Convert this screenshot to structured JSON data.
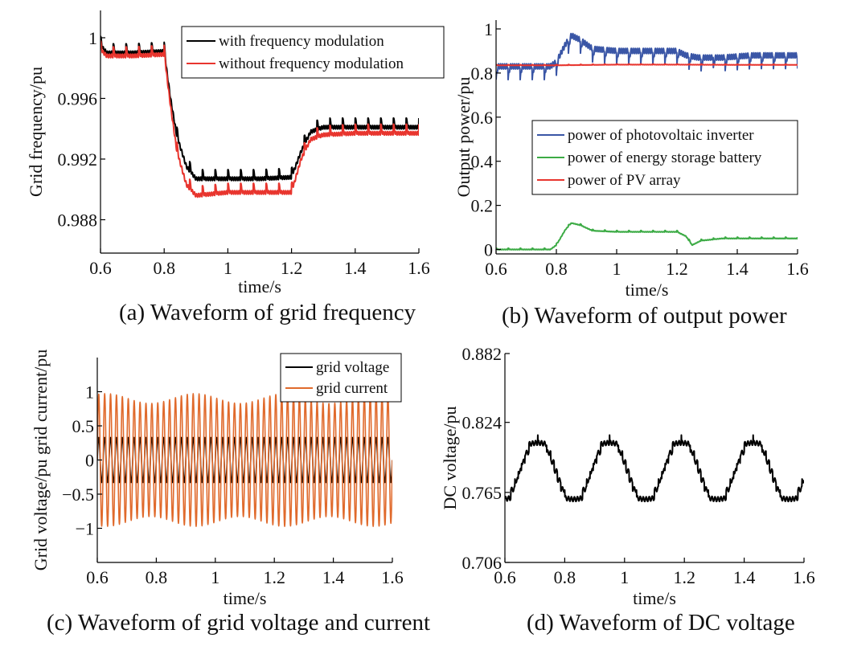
{
  "chart_data": [
    {
      "id": "a",
      "type": "line",
      "caption": "(a) Waveform of grid frequency",
      "xlabel": "time/s",
      "ylabel": "Grid frequency/pu",
      "xlim": [
        0.6,
        1.6
      ],
      "ylim": [
        0.9858,
        1.0018
      ],
      "xticks": [
        0.6,
        0.8,
        1,
        1.2,
        1.4,
        1.6
      ],
      "xtick_labels": [
        "0.6",
        "0.8",
        "1",
        "1.2",
        "1.4",
        "1.6"
      ],
      "yticks": [
        0.988,
        0.992,
        0.996,
        1.0
      ],
      "ytick_labels": [
        "0.988",
        "0.992",
        "0.996",
        "1"
      ],
      "legend_position": "top-right",
      "series": [
        {
          "name": "with frequency modulation",
          "color": "#000000",
          "points": [
            [
              0.6,
              0.9995
            ],
            [
              0.62,
              0.999
            ],
            [
              0.7,
              0.999
            ],
            [
              0.8,
              0.9991
            ],
            [
              0.82,
              0.996
            ],
            [
              0.84,
              0.9935
            ],
            [
              0.87,
              0.9915
            ],
            [
              0.9,
              0.9907
            ],
            [
              1.0,
              0.9907
            ],
            [
              1.1,
              0.9907
            ],
            [
              1.2,
              0.9908
            ],
            [
              1.23,
              0.9925
            ],
            [
              1.26,
              0.9938
            ],
            [
              1.3,
              0.9941
            ],
            [
              1.4,
              0.9941
            ],
            [
              1.5,
              0.9941
            ],
            [
              1.6,
              0.9941
            ]
          ],
          "ripple": 0.0006
        },
        {
          "name": "without frequency modulation",
          "color": "#e8352e",
          "points": [
            [
              0.6,
              0.9992
            ],
            [
              0.62,
              0.9988
            ],
            [
              0.7,
              0.9988
            ],
            [
              0.8,
              0.9989
            ],
            [
              0.82,
              0.9955
            ],
            [
              0.84,
              0.9925
            ],
            [
              0.87,
              0.9903
            ],
            [
              0.9,
              0.9896
            ],
            [
              1.0,
              0.9898
            ],
            [
              1.1,
              0.9898
            ],
            [
              1.2,
              0.9898
            ],
            [
              1.23,
              0.992
            ],
            [
              1.26,
              0.9933
            ],
            [
              1.3,
              0.9936
            ],
            [
              1.4,
              0.9937
            ],
            [
              1.5,
              0.9937
            ],
            [
              1.6,
              0.9937
            ]
          ],
          "ripple": 0.0006
        }
      ]
    },
    {
      "id": "b",
      "type": "line",
      "caption": "(b) Waveform of output power",
      "xlabel": "time/s",
      "ylabel": "Output power/pu",
      "xlim": [
        0.6,
        1.6
      ],
      "ylim": [
        -0.02,
        1.04
      ],
      "xticks": [
        0.6,
        0.8,
        1,
        1.2,
        1.4,
        1.6
      ],
      "xtick_labels": [
        "0.6",
        "0.8",
        "1",
        "1.2",
        "1.4",
        "1.6"
      ],
      "yticks": [
        0,
        0.2,
        0.4,
        0.6,
        0.8,
        1
      ],
      "ytick_labels": [
        "0",
        "0.2",
        "0.4",
        "0.6",
        "0.8",
        "1"
      ],
      "legend_position": "center-right",
      "series": [
        {
          "name": "power of photovoltaic inverter",
          "color": "#3a56a6",
          "points": [
            [
              0.6,
              0.83
            ],
            [
              0.78,
              0.83
            ],
            [
              0.8,
              0.85
            ],
            [
              0.83,
              0.93
            ],
            [
              0.85,
              0.97
            ],
            [
              0.88,
              0.95
            ],
            [
              0.92,
              0.91
            ],
            [
              1.0,
              0.9
            ],
            [
              1.1,
              0.9
            ],
            [
              1.2,
              0.9
            ],
            [
              1.23,
              0.88
            ],
            [
              1.27,
              0.87
            ],
            [
              1.35,
              0.87
            ],
            [
              1.45,
              0.88
            ],
            [
              1.6,
              0.88
            ]
          ],
          "ripple": 0.06
        },
        {
          "name": "power of energy storage battery",
          "color": "#3cab45",
          "points": [
            [
              0.6,
              0.0
            ],
            [
              0.78,
              0.0
            ],
            [
              0.8,
              0.02
            ],
            [
              0.83,
              0.09
            ],
            [
              0.85,
              0.12
            ],
            [
              0.88,
              0.11
            ],
            [
              0.92,
              0.085
            ],
            [
              1.0,
              0.08
            ],
            [
              1.2,
              0.08
            ],
            [
              1.23,
              0.06
            ],
            [
              1.25,
              0.02
            ],
            [
              1.28,
              0.04
            ],
            [
              1.35,
              0.05
            ],
            [
              1.6,
              0.05
            ]
          ],
          "ripple": 0.006
        },
        {
          "name": "power of PV array",
          "color": "#e8352e",
          "points": [
            [
              0.6,
              0.835
            ],
            [
              0.8,
              0.835
            ],
            [
              1.0,
              0.838
            ],
            [
              1.2,
              0.838
            ],
            [
              1.4,
              0.837
            ],
            [
              1.6,
              0.837
            ]
          ],
          "ripple": 0.003
        }
      ]
    },
    {
      "id": "c",
      "type": "line",
      "caption": "(c) Waveform of grid voltage and current",
      "xlabel": "time/s",
      "ylabel": "Grid voltage/pu grid current/pu",
      "xlim": [
        0.6,
        1.6
      ],
      "ylim": [
        -1.5,
        1.5
      ],
      "xticks": [
        0.6,
        0.8,
        1,
        1.2,
        1.4,
        1.6
      ],
      "xtick_labels": [
        "0.6",
        "0.8",
        "1",
        "1.2",
        "1.4",
        "1.6"
      ],
      "yticks": [
        -1,
        -0.5,
        0,
        0.5,
        1
      ],
      "ytick_labels": [
        "−1",
        "−0.5",
        "0",
        "0.5",
        "1"
      ],
      "legend_position": "top-right",
      "series": [
        {
          "name": "grid voltage",
          "color": "#000000",
          "frequency_hz": 50,
          "amplitude": 0.33
        },
        {
          "name": "grid current",
          "color": "#e06a2c",
          "frequency_hz": 50,
          "amplitude": 0.9
        }
      ]
    },
    {
      "id": "d",
      "type": "line",
      "caption": "(d) Waveform of DC voltage",
      "xlabel": "time/s",
      "ylabel": "DC voltage/pu",
      "xlim": [
        0.6,
        1.6
      ],
      "ylim": [
        0.706,
        0.882
      ],
      "xticks": [
        0.6,
        0.8,
        1,
        1.2,
        1.4,
        1.6
      ],
      "xtick_labels": [
        "0.6",
        "0.8",
        "1",
        "1.2",
        "1.4",
        "1.6"
      ],
      "yticks": [
        0.706,
        0.765,
        0.824,
        0.882
      ],
      "ytick_labels": [
        "0.706",
        "0.765",
        "0.824",
        "0.882"
      ],
      "legend_position": "none",
      "series": [
        {
          "name": "DC voltage",
          "color": "#000000",
          "mean": 0.783,
          "amplitude": 0.027,
          "period_s": 0.24,
          "step_count": 7
        }
      ]
    }
  ]
}
